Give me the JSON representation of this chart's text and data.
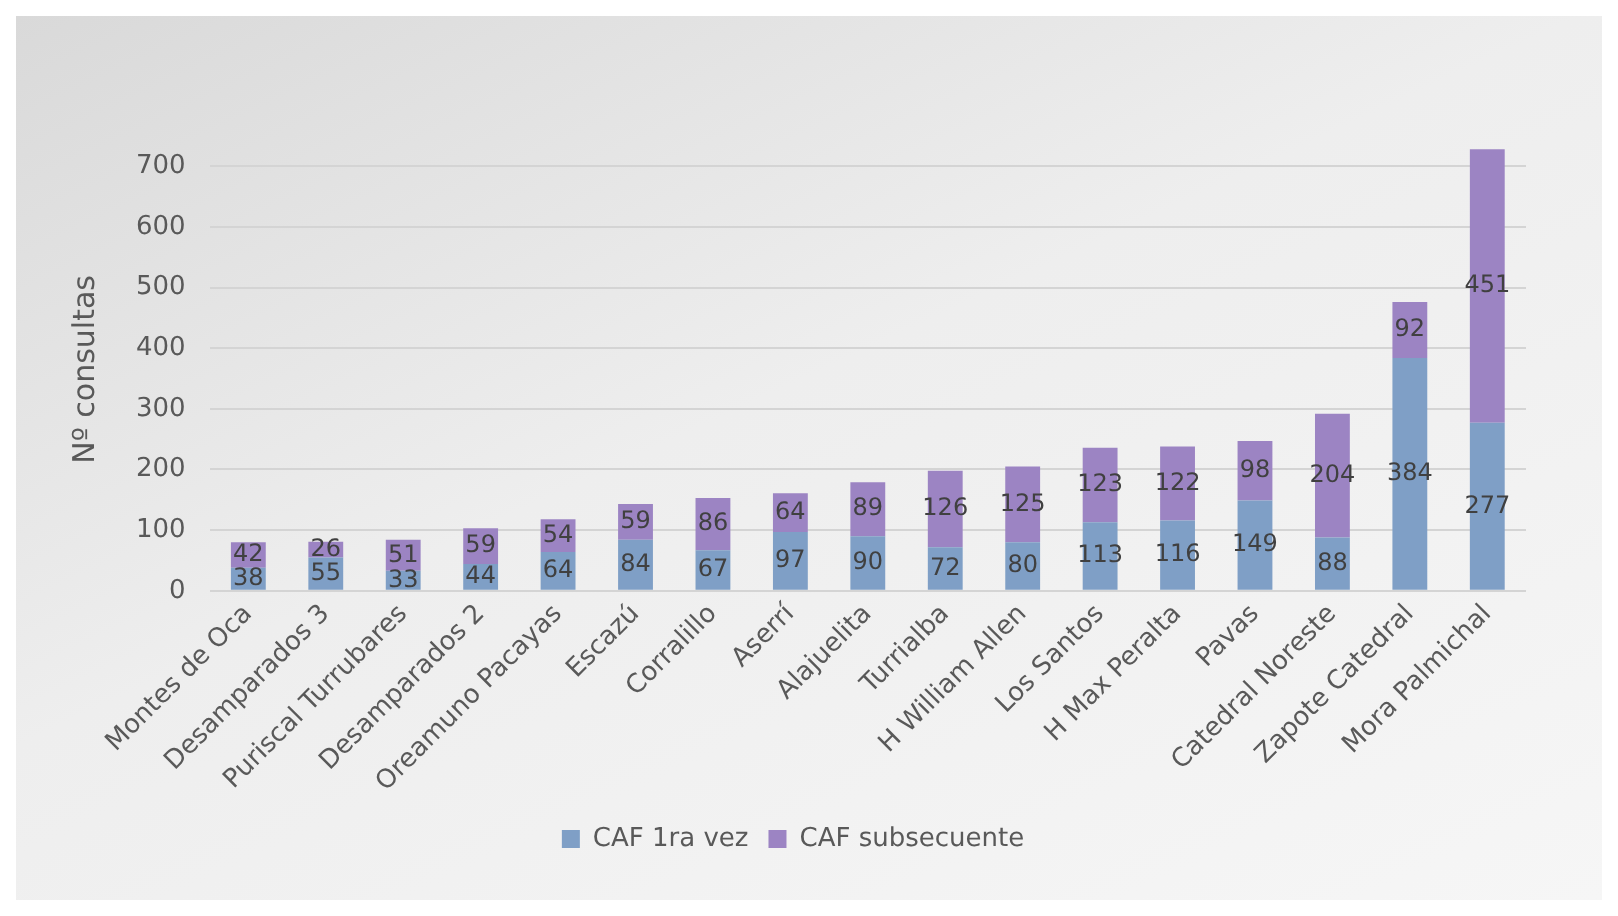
{
  "chart_data": {
    "type": "bar",
    "stacked": true,
    "ylabel": "Nº consultas",
    "categories": [
      "Montes de Oca",
      "Desamparados 3",
      "Puriscal Turrubares",
      "Desamparados 2",
      "Oreamuno Pacayas",
      "Escazú",
      "Corralillo",
      "Aserrí",
      "Alajuelita",
      "Turrialba",
      "H William Allen",
      "Los Santos",
      "H Max Peralta",
      "Pavas",
      "Catedral Noreste",
      "Zapote Catedral",
      "Mora Palmichal"
    ],
    "series": [
      {
        "name": "CAF 1ra vez",
        "color": "#7f9fc6",
        "values": [
          38,
          55,
          33,
          44,
          64,
          84,
          67,
          97,
          90,
          72,
          80,
          113,
          116,
          149,
          88,
          384,
          277
        ]
      },
      {
        "name": "CAF subsecuente",
        "color": "#9c84c3",
        "values": [
          42,
          26,
          51,
          59,
          54,
          59,
          86,
          64,
          89,
          126,
          125,
          123,
          122,
          98,
          204,
          92,
          451
        ]
      }
    ],
    "ylim": [
      0,
      730
    ],
    "yticks": [
      0,
      100,
      200,
      300,
      400,
      500,
      600,
      700
    ],
    "grid": "y",
    "legend": "bottom",
    "data_labels": true
  }
}
